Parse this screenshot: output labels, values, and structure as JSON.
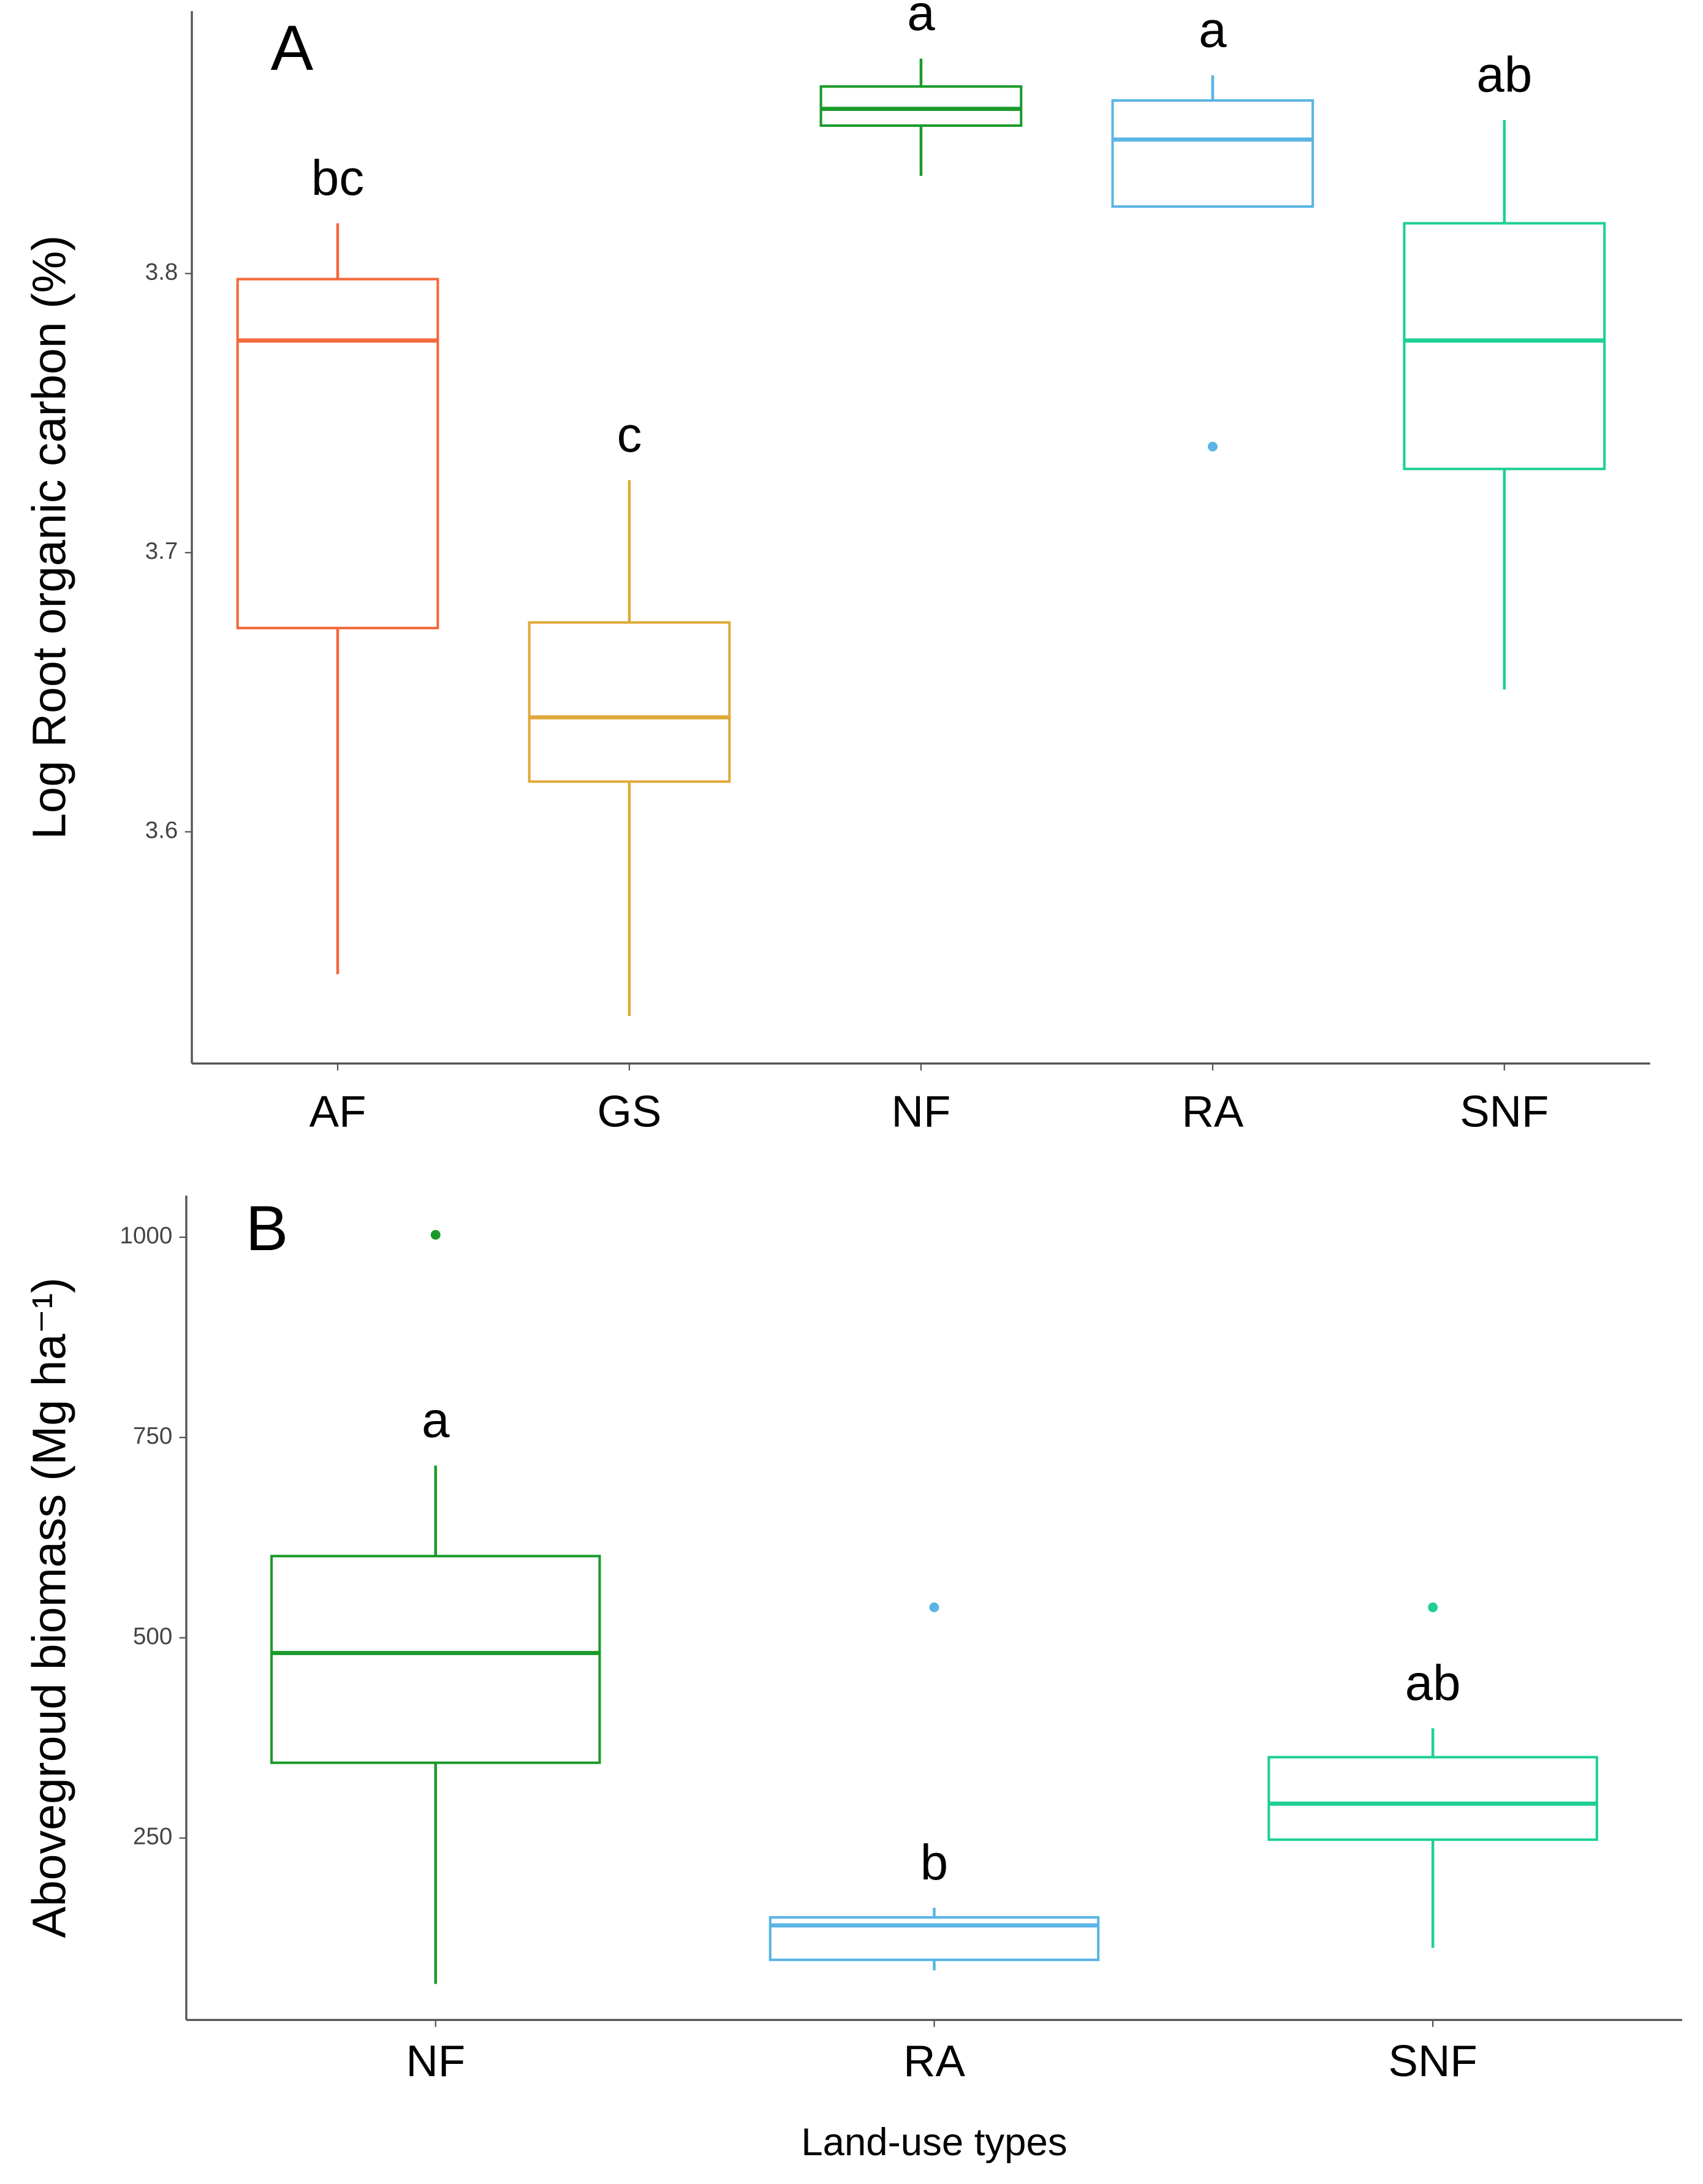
{
  "chart_data": [
    {
      "type": "box",
      "panel_label": "A",
      "ylabel": "Log Root organic carbon (%)",
      "categories": [
        "AF",
        "GS",
        "NF",
        "RA",
        "SNF"
      ],
      "colors": [
        "#f4683a",
        "#e0a93a",
        "#1a9a2a",
        "#5ab4e5",
        "#1fcf95"
      ],
      "boxes": [
        {
          "low": 3.549,
          "q1": 3.673,
          "median": 3.776,
          "q3": 3.798,
          "high": 3.818,
          "outliers": []
        },
        {
          "low": 3.534,
          "q1": 3.618,
          "median": 3.641,
          "q3": 3.675,
          "high": 3.726,
          "outliers": []
        },
        {
          "low": 3.835,
          "q1": 3.853,
          "median": 3.859,
          "q3": 3.867,
          "high": 3.877,
          "outliers": []
        },
        {
          "low": 3.824,
          "q1": 3.824,
          "median": 3.848,
          "q3": 3.862,
          "high": 3.871,
          "outliers": [
            3.738
          ]
        },
        {
          "low": 3.651,
          "q1": 3.73,
          "median": 3.776,
          "q3": 3.818,
          "high": 3.855,
          "outliers": []
        }
      ],
      "annotations": [
        "bc",
        "c",
        "a",
        "a",
        "ab"
      ],
      "ylim": [
        3.517,
        3.894
      ],
      "yticks": [
        3.6,
        3.7,
        3.8
      ]
    },
    {
      "type": "box",
      "panel_label": "B",
      "ylabel": "Abovegroud biomass (Mg ha⁻¹)",
      "xlabel": "Land-use types",
      "categories": [
        "NF",
        "RA",
        "SNF"
      ],
      "colors": [
        "#1a9a2a",
        "#5ab4e5",
        "#1fcf95"
      ],
      "boxes": [
        {
          "low": 68,
          "q1": 344,
          "median": 481,
          "q3": 602,
          "high": 715,
          "outliers": [
            1003
          ]
        },
        {
          "low": 85,
          "q1": 98,
          "median": 141,
          "q3": 151,
          "high": 163,
          "outliers": [
            538
          ]
        },
        {
          "low": 113,
          "q1": 248,
          "median": 293,
          "q3": 351,
          "high": 387,
          "outliers": [
            538
          ]
        }
      ],
      "annotations": [
        "a",
        "b",
        "ab"
      ],
      "ylim": [
        23,
        1052
      ],
      "yticks": [
        250,
        500,
        750,
        1000
      ]
    }
  ]
}
